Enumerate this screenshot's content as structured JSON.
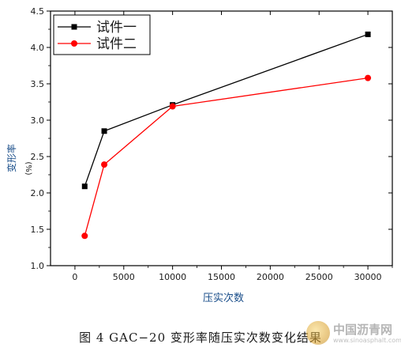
{
  "chart_data": {
    "type": "line",
    "xlabel": "压实次数",
    "ylabel_main": "变形率",
    "ylabel_unit": "(%)",
    "xlim": [
      -2500,
      32500
    ],
    "ylim": [
      1.0,
      4.5
    ],
    "xticks": [
      0,
      5000,
      10000,
      15000,
      20000,
      25000,
      30000
    ],
    "yticks": [
      1.0,
      1.5,
      2.0,
      2.5,
      3.0,
      3.5,
      4.0,
      4.5
    ],
    "legend_position": "top-left",
    "grid": false,
    "series": [
      {
        "name": "试件一",
        "color": "#000000",
        "marker": "square",
        "points": [
          [
            1000,
            2.09
          ],
          [
            3000,
            2.85
          ],
          [
            10000,
            3.21
          ],
          [
            30000,
            4.18
          ]
        ]
      },
      {
        "name": "试件二",
        "color": "#ff0000",
        "marker": "circle",
        "points": [
          [
            1000,
            1.41
          ],
          [
            3000,
            2.39
          ],
          [
            10000,
            3.19
          ],
          [
            30000,
            3.58
          ]
        ]
      }
    ]
  },
  "caption": "图 4 GAC−20 变形率随压实次数变化结果",
  "watermark": {
    "title": "中国沥青网",
    "url": "www.sinoasphalt.com"
  }
}
